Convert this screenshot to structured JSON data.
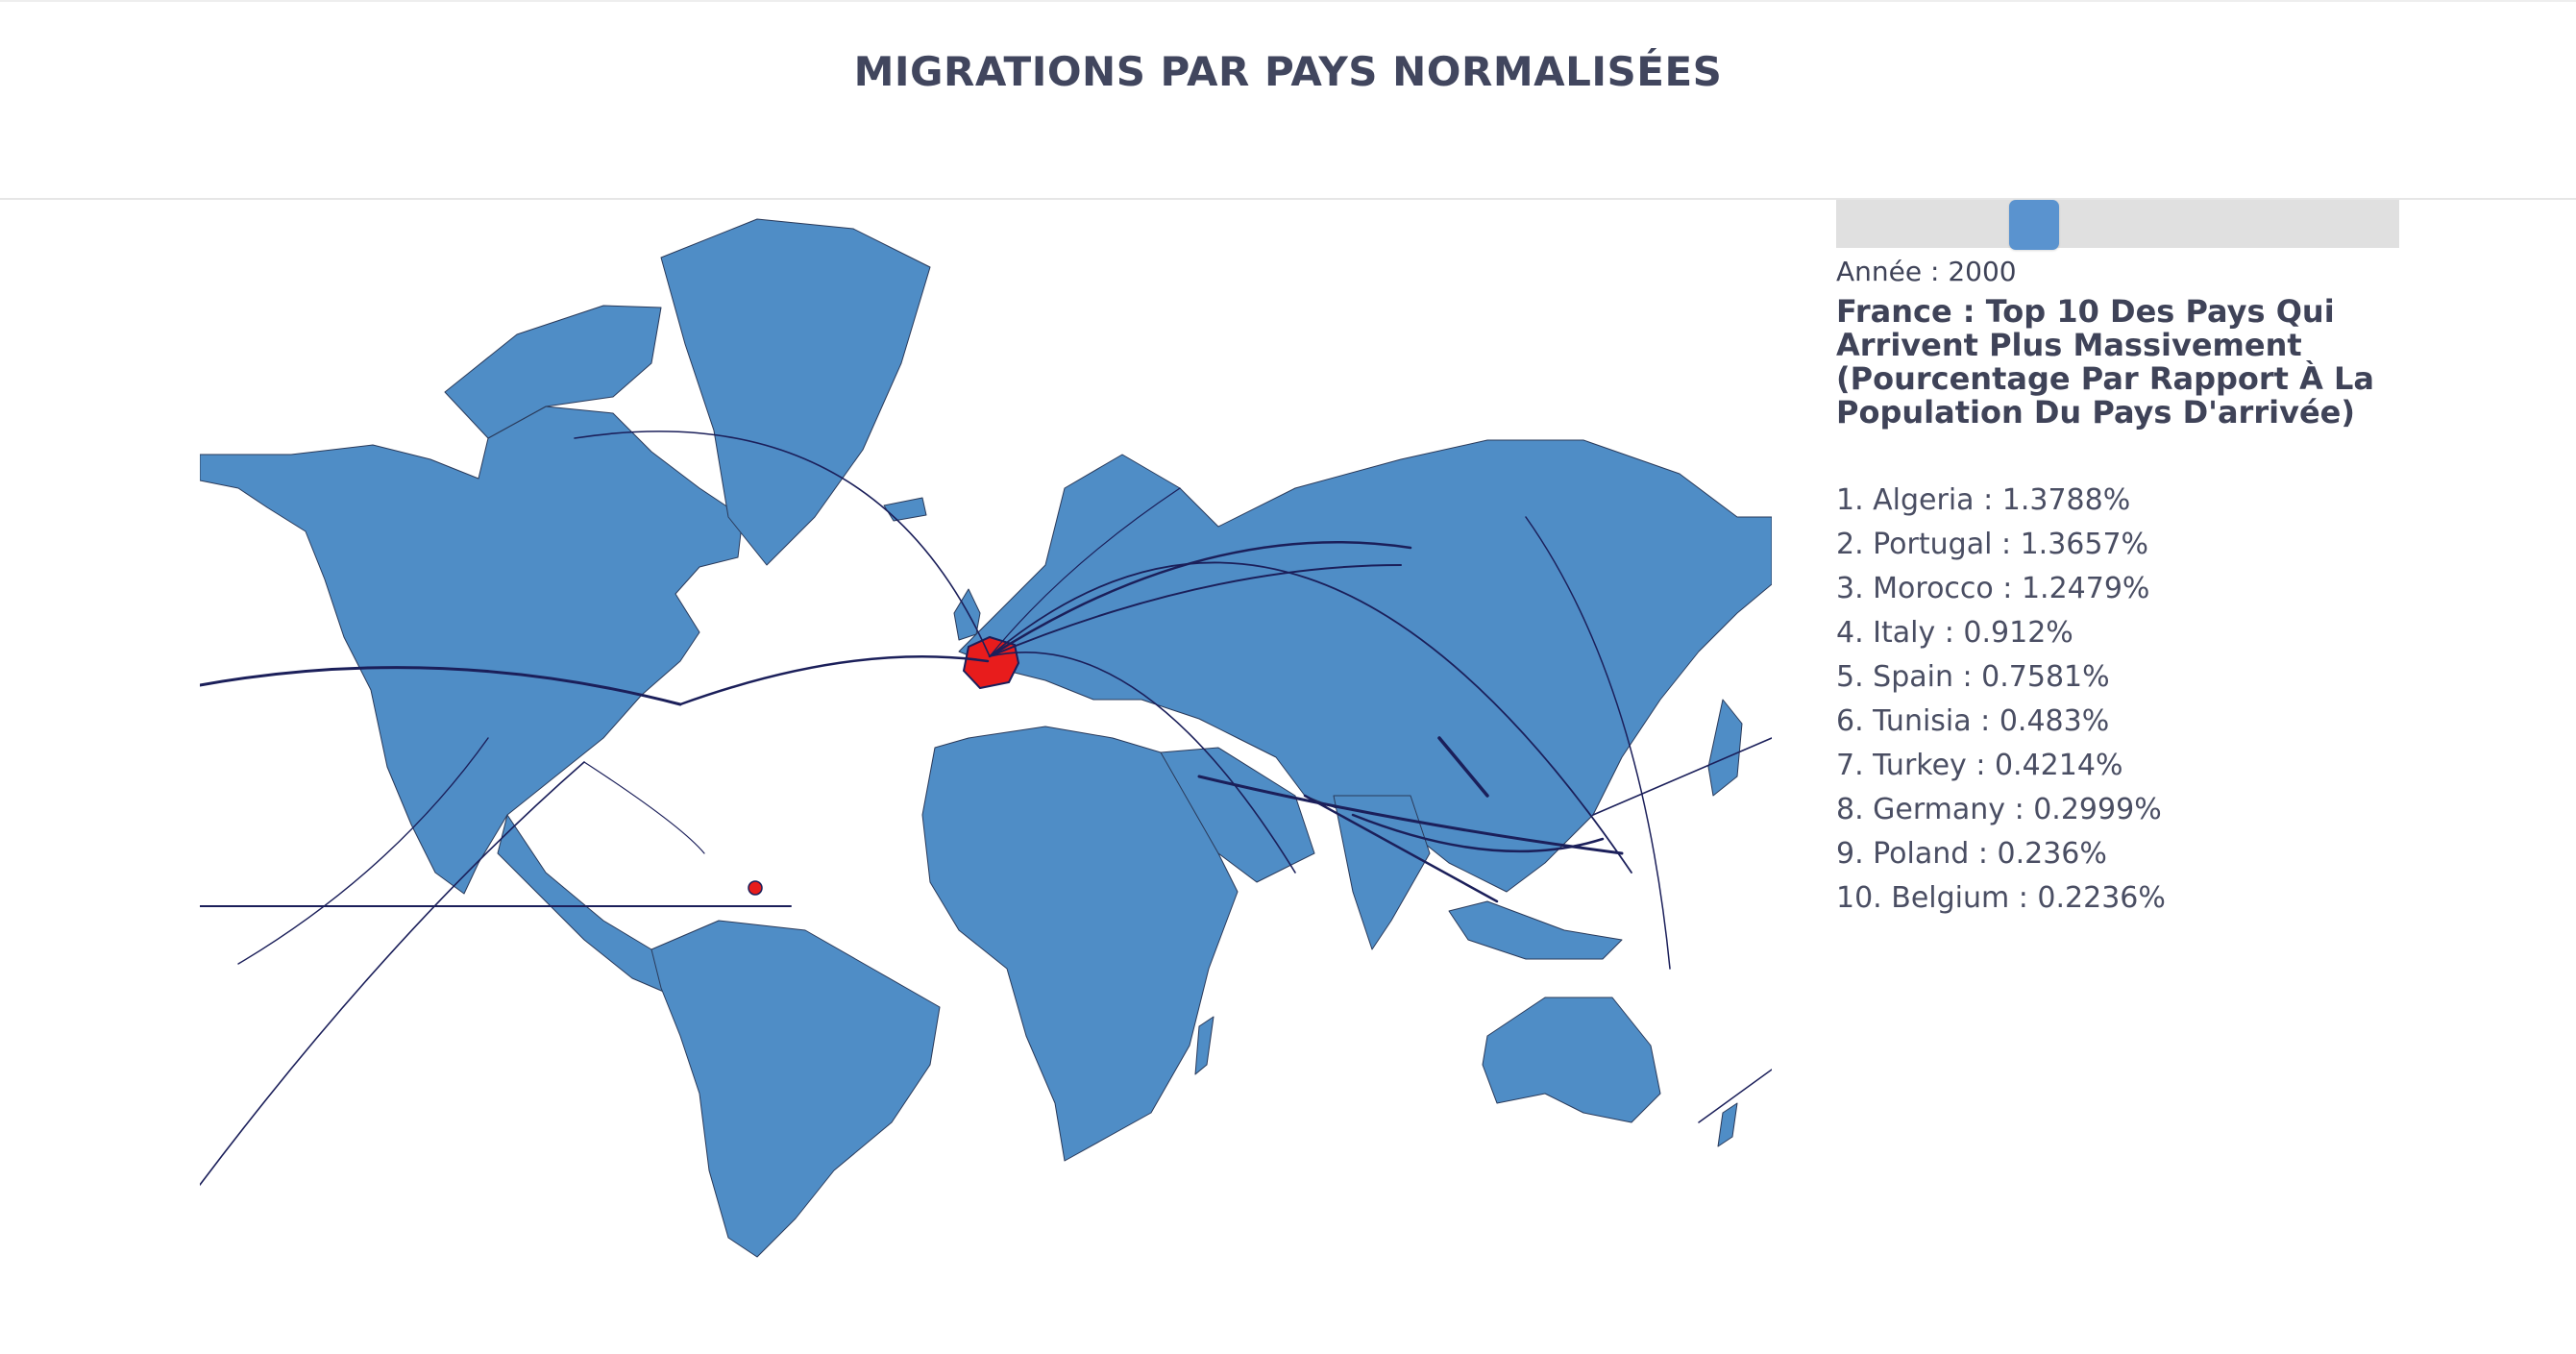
{
  "page": {
    "title": "MIGRATIONS PAR PAYS NORMALISÉES"
  },
  "colors": {
    "land": "#4f8dc6",
    "highlight_country": "#e81c1c",
    "flow_line": "#1b1f5a",
    "slider_track": "#e0e0e0",
    "slider_handle": "#5a93cf",
    "text": "#3f4358"
  },
  "map": {
    "projection": "mercator",
    "highlighted_country": "France",
    "flows_shown": true
  },
  "year_slider": {
    "year_label": "Année : 2000",
    "year": 2000
  },
  "panel": {
    "title": "France : Top 10 Des Pays Qui Arrivent Plus Massivement (Pourcentage Par Rapport À La Population Du Pays D'arrivée)"
  },
  "top10": [
    "1. Algeria : 1.3788%",
    "2. Portugal : 1.3657%",
    "3. Morocco : 1.2479%",
    "4. Italy : 0.912%",
    "5. Spain : 0.7581%",
    "6. Tunisia : 0.483%",
    "7. Turkey : 0.4214%",
    "8. Germany : 0.2999%",
    "9. Poland : 0.236%",
    "10. Belgium : 0.2236%"
  ],
  "top10_values": [
    {
      "country": "Algeria",
      "percent": 1.3788
    },
    {
      "country": "Portugal",
      "percent": 1.3657
    },
    {
      "country": "Morocco",
      "percent": 1.2479
    },
    {
      "country": "Italy",
      "percent": 0.912
    },
    {
      "country": "Spain",
      "percent": 0.7581
    },
    {
      "country": "Tunisia",
      "percent": 0.483
    },
    {
      "country": "Turkey",
      "percent": 0.4214
    },
    {
      "country": "Germany",
      "percent": 0.2999
    },
    {
      "country": "Poland",
      "percent": 0.236
    },
    {
      "country": "Belgium",
      "percent": 0.2236
    }
  ]
}
